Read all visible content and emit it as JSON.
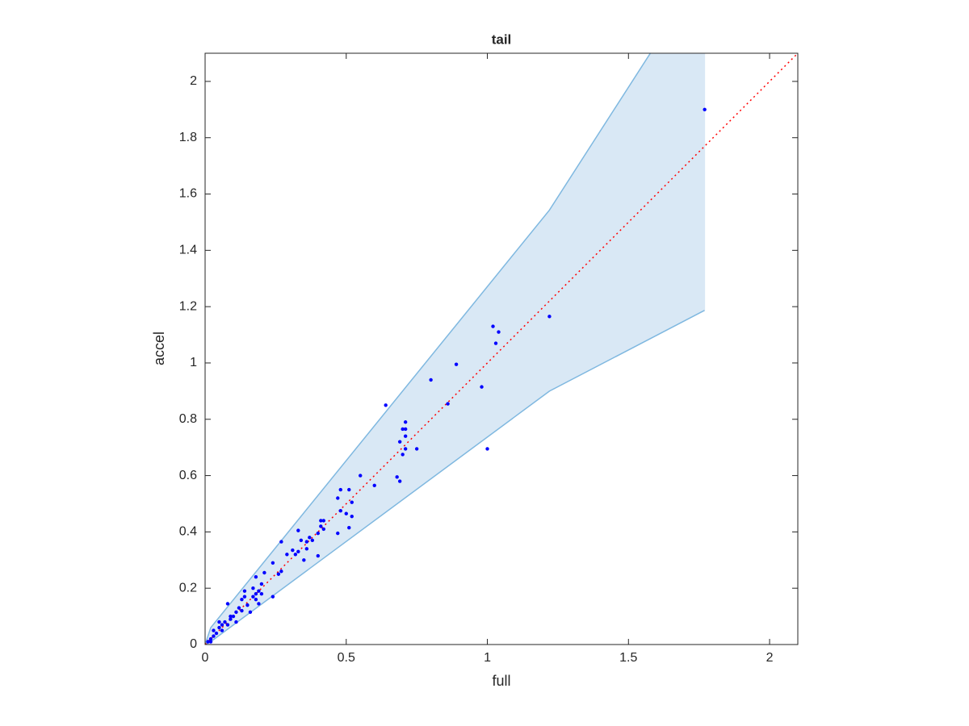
{
  "chart_data": {
    "type": "scatter",
    "title": "tail",
    "xlabel": "full",
    "ylabel": "accel",
    "xlim": [
      0,
      2.1
    ],
    "ylim": [
      0,
      2.1
    ],
    "xticks": [
      0,
      0.5,
      1,
      1.5,
      2
    ],
    "yticks": [
      0,
      0.2,
      0.4,
      0.6,
      0.8,
      1,
      1.2,
      1.4,
      1.6,
      1.8,
      2
    ],
    "color": "#0000ff",
    "x": [
      1.77,
      1.22,
      1.02,
      1.04,
      1.03,
      0.98,
      1.0,
      0.89,
      0.8,
      0.86,
      0.64,
      0.71,
      0.7,
      0.71,
      0.71,
      0.69,
      0.75,
      0.71,
      0.7,
      0.68,
      0.69,
      0.55,
      0.6,
      0.48,
      0.51,
      0.47,
      0.52,
      0.48,
      0.5,
      0.52,
      0.51,
      0.41,
      0.42,
      0.41,
      0.42,
      0.4,
      0.47,
      0.37,
      0.38,
      0.36,
      0.33,
      0.34,
      0.27,
      0.31,
      0.29,
      0.33,
      0.32,
      0.36,
      0.35,
      0.4,
      0.27,
      0.26,
      0.24,
      0.21,
      0.18,
      0.2,
      0.17,
      0.19,
      0.18,
      0.2,
      0.17,
      0.18,
      0.19,
      0.24,
      0.14,
      0.14,
      0.12,
      0.13,
      0.15,
      0.1,
      0.09,
      0.08,
      0.07,
      0.06,
      0.05,
      0.04,
      0.03,
      0.02,
      0.01,
      0.11,
      0.08,
      0.06,
      0.16,
      0.11,
      0.09,
      0.13,
      0.05,
      0.03,
      0.02
    ],
    "y": [
      1.9,
      1.165,
      1.13,
      1.11,
      1.07,
      0.915,
      0.695,
      0.995,
      0.94,
      0.855,
      0.85,
      0.79,
      0.765,
      0.765,
      0.74,
      0.72,
      0.695,
      0.695,
      0.675,
      0.595,
      0.58,
      0.6,
      0.565,
      0.55,
      0.55,
      0.52,
      0.505,
      0.475,
      0.465,
      0.455,
      0.415,
      0.44,
      0.44,
      0.42,
      0.41,
      0.395,
      0.395,
      0.38,
      0.37,
      0.365,
      0.405,
      0.37,
      0.365,
      0.335,
      0.32,
      0.33,
      0.32,
      0.34,
      0.3,
      0.315,
      0.26,
      0.25,
      0.29,
      0.255,
      0.24,
      0.215,
      0.2,
      0.19,
      0.18,
      0.18,
      0.17,
      0.16,
      0.145,
      0.17,
      0.19,
      0.17,
      0.13,
      0.12,
      0.14,
      0.1,
      0.09,
      0.145,
      0.08,
      0.07,
      0.06,
      0.04,
      0.03,
      0.02,
      0.01,
      0.08,
      0.07,
      0.05,
      0.115,
      0.115,
      0.1,
      0.16,
      0.08,
      0.05,
      0.01
    ],
    "band": {
      "color": "#d9e8f5",
      "edge_color": "#7fb8e0",
      "x": [
        0,
        0.02,
        1.22,
        1.77
      ],
      "lower": [
        0,
        0.01,
        0.9,
        1.187
      ],
      "upper": [
        0,
        0.06,
        1.543,
        2.4
      ]
    },
    "reference_line": {
      "color": "#ff0000",
      "x": [
        0,
        2.1
      ],
      "y": [
        0,
        2.1
      ]
    }
  }
}
